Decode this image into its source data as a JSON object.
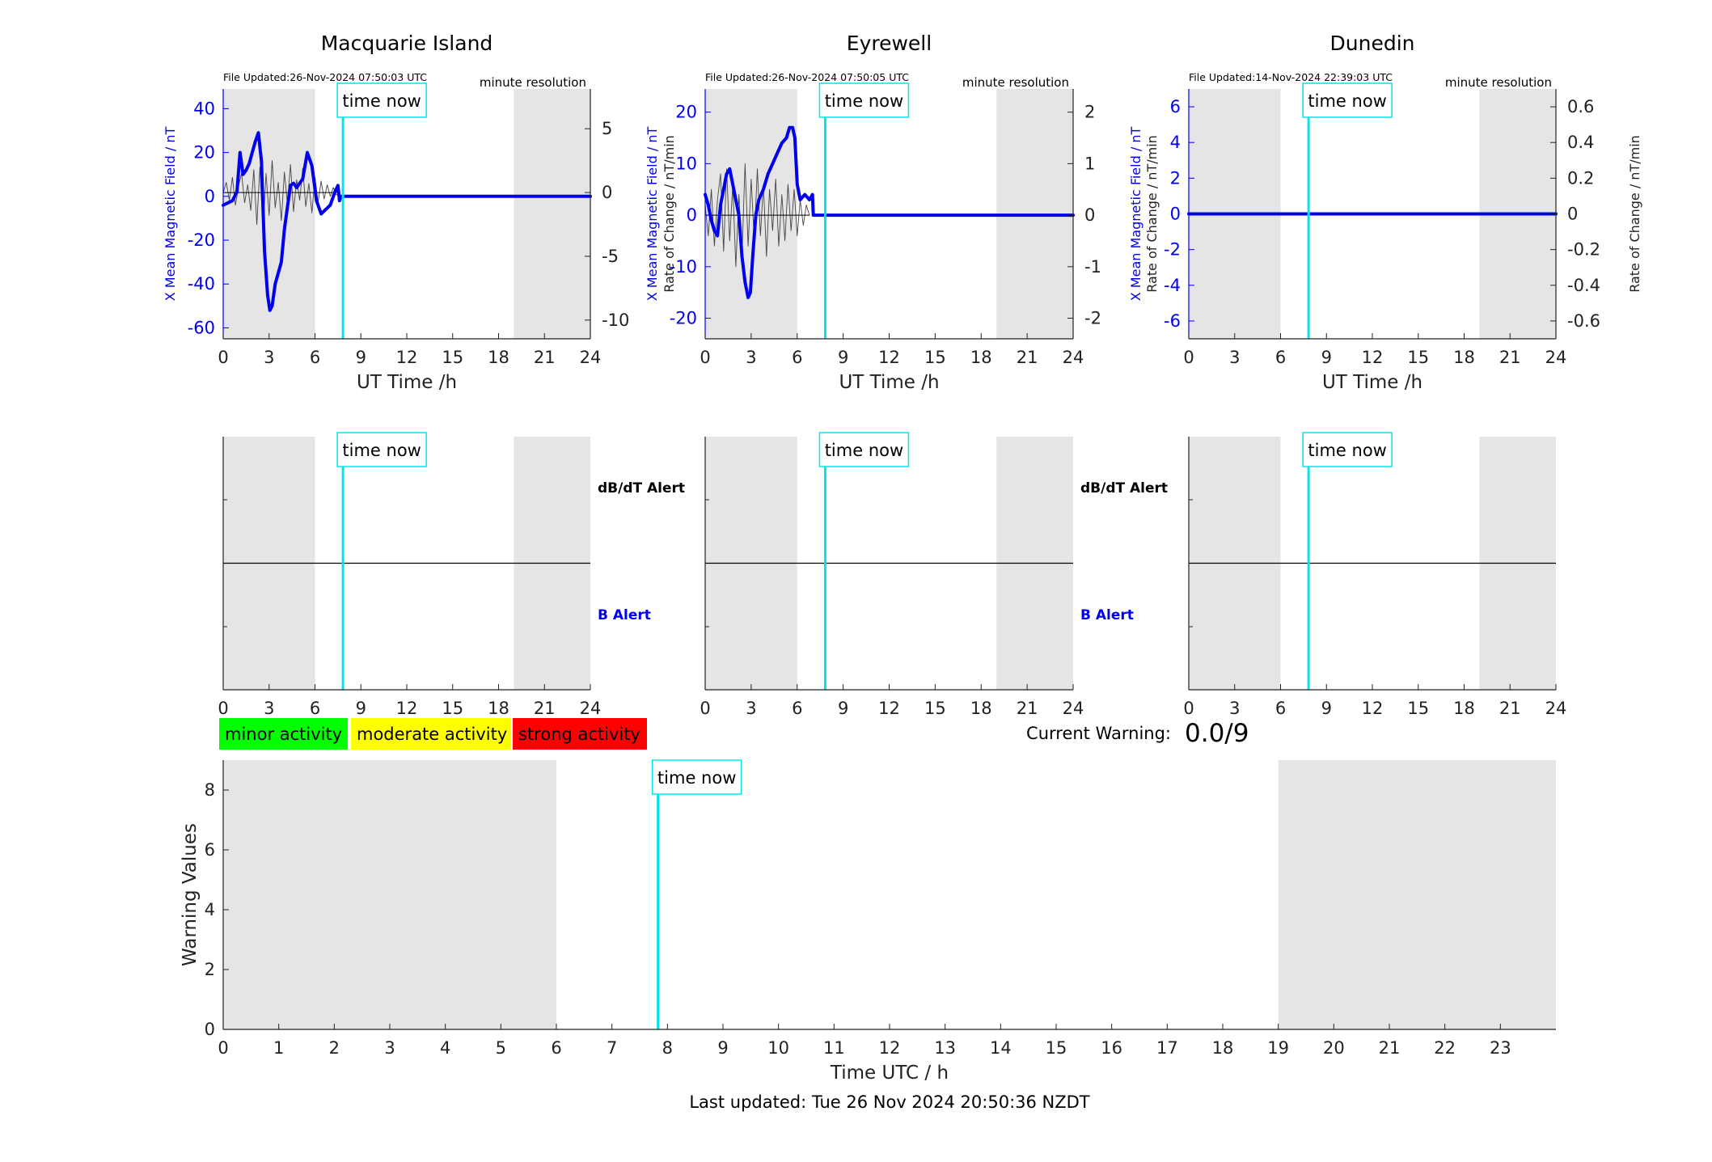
{
  "colors": {
    "night_shade": "#e5e5e5",
    "field_line": "#0000ee",
    "rate_line": "#444444",
    "now_line": "#00e5ee",
    "axis_blue": "#0000ee",
    "axis_black": "#222222",
    "minor": "#00ff00",
    "moderate": "#ffff00",
    "strong": "#ff0000"
  },
  "labels": {
    "time_now": "time now",
    "minute_resolution": "minute resolution",
    "field_axis": "X Mean Magnetic Field / nT",
    "rate_axis": "Rate of Change / nT/min",
    "ut_time": "UT Time /h",
    "dbdt_alert": "dB/dT Alert",
    "b_alert": "B Alert",
    "current_warning_label": "Current Warning:",
    "current_warning_value": "0.0/9",
    "warning_values_axis": "Warning Values",
    "time_utc_axis": "Time UTC / h",
    "last_updated": "Last updated: Tue 26 Nov 2024 20:50:36 NZDT"
  },
  "legend": {
    "minor": "minor activity",
    "moderate": "moderate activity",
    "strong": "strong activity"
  },
  "chart_data": [
    {
      "type": "line",
      "title": "Macquarie Island",
      "file_updated": "File Updated:26-Nov-2024 07:50:03 UTC",
      "xlabel": "UT Time /h",
      "ylabel": "X Mean Magnetic Field / nT",
      "y2label": "Rate of Change / nT/min",
      "xlim": [
        0,
        24
      ],
      "ylim": [
        -65,
        49
      ],
      "y2lim": [
        -11.47,
        8.12
      ],
      "xticks": [
        0,
        3,
        6,
        9,
        12,
        15,
        18,
        21,
        24
      ],
      "yticks": [
        -60,
        -40,
        -20,
        0,
        20,
        40
      ],
      "y2ticks": [
        -10,
        -5,
        0,
        5
      ],
      "night_bands": [
        [
          0,
          6
        ],
        [
          19,
          24
        ]
      ],
      "time_now": 7.83,
      "field_series": {
        "x": [
          0,
          0.3,
          0.6,
          0.9,
          1.1,
          1.3,
          1.5,
          1.7,
          1.9,
          2.1,
          2.3,
          2.5,
          2.6,
          2.7,
          2.9,
          3.05,
          3.2,
          3.4,
          3.6,
          3.8,
          4.0,
          4.2,
          4.4,
          4.6,
          4.8,
          5.0,
          5.2,
          5.5,
          5.8,
          6.1,
          6.4,
          6.7,
          7.0,
          7.3,
          7.5,
          7.6,
          7.7,
          7.83,
          24
        ],
        "y": [
          -4,
          -3,
          -2,
          2,
          20,
          10,
          12,
          15,
          20,
          25,
          29,
          16,
          -5,
          -25,
          -45,
          -52,
          -50,
          -40,
          -35,
          -30,
          -15,
          -5,
          5,
          6,
          4,
          6,
          8,
          20,
          14,
          -2,
          -8,
          -6,
          -4,
          2,
          5,
          -2,
          0,
          0,
          0
        ]
      },
      "rate_series": {
        "x": [
          0,
          0.2,
          0.4,
          0.6,
          0.8,
          1.0,
          1.2,
          1.4,
          1.6,
          1.8,
          2.0,
          2.2,
          2.4,
          2.6,
          2.8,
          3.0,
          3.2,
          3.4,
          3.6,
          3.8,
          4.0,
          4.2,
          4.4,
          4.6,
          4.8,
          5.0,
          5.2,
          5.4,
          5.6,
          5.8,
          6.0,
          6.2,
          6.4,
          6.6,
          6.8,
          7.0,
          7.2,
          7.4,
          7.6
        ],
        "y": [
          0,
          0.8,
          -0.6,
          1.2,
          -1.0,
          0.5,
          1.5,
          -0.8,
          0.6,
          -1.4,
          1.8,
          -2.5,
          2.0,
          -3.0,
          1.5,
          -1.8,
          2.5,
          -1.2,
          0.8,
          -2.2,
          1.6,
          -0.9,
          2.2,
          -1.5,
          1.0,
          -0.6,
          1.9,
          -1.1,
          0.7,
          -1.6,
          1.2,
          -0.8,
          0.9,
          -0.5,
          0.6,
          -0.3,
          0.4,
          -0.2,
          0
        ]
      }
    },
    {
      "type": "line",
      "title": "Eyrewell",
      "file_updated": "File Updated:26-Nov-2024 07:50:05 UTC",
      "xlabel": "UT Time /h",
      "ylabel": "X Mean Magnetic Field / nT",
      "y2label": "Rate of Change / nT/min",
      "xlim": [
        0,
        24
      ],
      "ylim": [
        -24,
        24.5
      ],
      "y2lim": [
        -2.4,
        2.45
      ],
      "xticks": [
        0,
        3,
        6,
        9,
        12,
        15,
        18,
        21,
        24
      ],
      "yticks": [
        -20,
        -10,
        0,
        10,
        20
      ],
      "y2ticks": [
        -2,
        -1,
        0,
        1,
        2
      ],
      "night_bands": [
        [
          0,
          6
        ],
        [
          19,
          24
        ]
      ],
      "time_now": 7.83,
      "field_series": {
        "x": [
          0,
          0.2,
          0.4,
          0.6,
          0.8,
          1.0,
          1.2,
          1.4,
          1.6,
          1.8,
          2.0,
          2.2,
          2.4,
          2.6,
          2.8,
          2.95,
          3.1,
          3.3,
          3.5,
          3.8,
          4.1,
          4.4,
          4.7,
          5.0,
          5.3,
          5.5,
          5.7,
          5.85,
          6.0,
          6.2,
          6.5,
          6.8,
          7.0,
          7.05,
          24
        ],
        "y": [
          4,
          2,
          -1,
          -3,
          -4,
          2,
          5,
          8,
          9,
          6,
          3,
          0,
          -8,
          -13,
          -16,
          -15,
          -8,
          0,
          3,
          5,
          8,
          10,
          12,
          14,
          15,
          17,
          17,
          15,
          6,
          3,
          4,
          3,
          4,
          0,
          0
        ]
      },
      "rate_series": {
        "x": [
          0,
          0.2,
          0.4,
          0.6,
          0.8,
          1.0,
          1.2,
          1.4,
          1.6,
          1.8,
          2.0,
          2.2,
          2.4,
          2.6,
          2.8,
          3.0,
          3.2,
          3.4,
          3.6,
          3.8,
          4.0,
          4.2,
          4.4,
          4.6,
          4.8,
          5.0,
          5.2,
          5.4,
          5.6,
          5.8,
          6.0,
          6.2,
          6.4,
          6.6,
          6.8
        ],
        "y": [
          0.2,
          -0.4,
          0.5,
          -0.6,
          0.3,
          0.8,
          -0.7,
          0.9,
          -0.5,
          0.6,
          -1.0,
          0.4,
          -0.8,
          1.0,
          -0.6,
          0.7,
          -0.5,
          0.9,
          -0.4,
          0.6,
          -0.8,
          0.5,
          -0.3,
          0.7,
          -0.6,
          0.4,
          -0.5,
          0.6,
          -0.3,
          0.5,
          -0.4,
          0.3,
          -0.2,
          0.2,
          0
        ]
      }
    },
    {
      "type": "line",
      "title": "Dunedin",
      "file_updated": "File Updated:14-Nov-2024 22:39:03 UTC",
      "xlabel": "UT Time /h",
      "ylabel": "X Mean Magnetic Field / nT",
      "y2label": "Rate of Change / nT/min",
      "xlim": [
        0,
        24
      ],
      "ylim": [
        -7,
        7
      ],
      "y2lim": [
        -0.7,
        0.7
      ],
      "xticks": [
        0,
        3,
        6,
        9,
        12,
        15,
        18,
        21,
        24
      ],
      "yticks": [
        -6,
        -4,
        -2,
        0,
        2,
        4,
        6
      ],
      "y2ticks": [
        -0.6,
        -0.4,
        -0.2,
        0,
        0.2,
        0.4,
        0.6
      ],
      "y2ticklabels": [
        "-0.6",
        "-0.4",
        "-0.2",
        "0",
        "0.2",
        "0.4",
        "0.6"
      ],
      "night_bands": [
        [
          0,
          6
        ],
        [
          19,
          24
        ]
      ],
      "time_now": 7.83,
      "field_series": {
        "x": [
          0,
          24
        ],
        "y": [
          0,
          0
        ]
      },
      "rate_series": {
        "x": [],
        "y": []
      }
    },
    {
      "type": "line",
      "title": "",
      "panel": "Macquarie Island alerts",
      "xlim": [
        0,
        24
      ],
      "xticks": [
        0,
        3,
        6,
        9,
        12,
        15,
        18,
        21,
        24
      ],
      "night_bands": [
        [
          0,
          6
        ],
        [
          19,
          24
        ]
      ],
      "time_now": 7.83,
      "upper_label": "dB/dT Alert",
      "lower_label": "B Alert"
    },
    {
      "type": "line",
      "title": "",
      "panel": "Eyrewell alerts",
      "xlim": [
        0,
        24
      ],
      "xticks": [
        0,
        3,
        6,
        9,
        12,
        15,
        18,
        21,
        24
      ],
      "night_bands": [
        [
          0,
          6
        ],
        [
          19,
          24
        ]
      ],
      "time_now": 7.83,
      "upper_label": "dB/dT Alert",
      "lower_label": "B Alert"
    },
    {
      "type": "line",
      "title": "",
      "panel": "Dunedin alerts",
      "xlim": [
        0,
        24
      ],
      "xticks": [
        0,
        3,
        6,
        9,
        12,
        15,
        18,
        21,
        24
      ],
      "night_bands": [
        [
          0,
          6
        ],
        [
          19,
          24
        ]
      ],
      "time_now": 7.83,
      "upper_label": "",
      "lower_label": ""
    },
    {
      "type": "bar",
      "title": "",
      "panel": "Warning values",
      "xlabel": "Time UTC / h",
      "ylabel": "Warning Values",
      "xlim": [
        0,
        24
      ],
      "ylim": [
        0,
        9
      ],
      "xticks": [
        0,
        1,
        2,
        3,
        4,
        5,
        6,
        7,
        8,
        9,
        10,
        11,
        12,
        13,
        14,
        15,
        16,
        17,
        18,
        19,
        20,
        21,
        22,
        23
      ],
      "yticks": [
        0,
        2,
        4,
        6,
        8
      ],
      "night_bands": [
        [
          0,
          6
        ],
        [
          19,
          24
        ]
      ],
      "time_now": 7.83,
      "values": []
    }
  ]
}
